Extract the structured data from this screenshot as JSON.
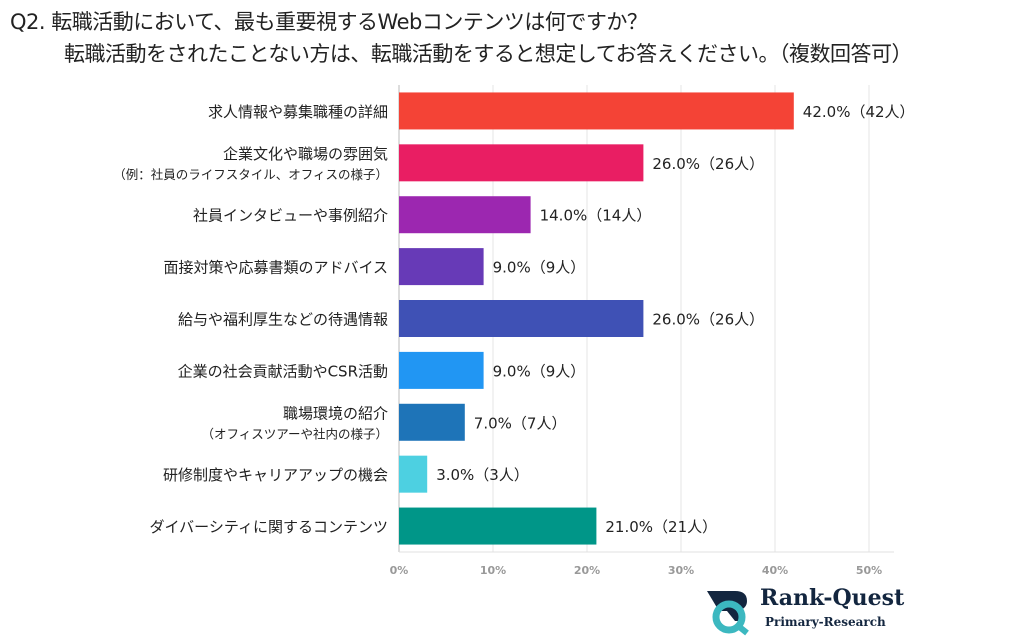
{
  "chart_data": {
    "type": "bar",
    "orientation": "horizontal",
    "title": "Q2. 転職活動において、最も重要視するWebコンテンツは何ですか？",
    "subtitle": "転職活動をされたことない方は、転職活動をすると想定してお答えください。（複数回答可）",
    "categories": [
      [
        "求人情報や募集職種の詳細"
      ],
      [
        "企業文化や職場の雰囲気",
        "（例：社員のライフスタイル、オフィスの様子）"
      ],
      [
        "社員インタビューや事例紹介"
      ],
      [
        "面接対策や応募書類のアドバイス"
      ],
      [
        "給与や福利厚生などの待遇情報"
      ],
      [
        "企業の社会貢献活動やCSR活動"
      ],
      [
        "職場環境の紹介",
        "（オフィスツアーや社内の様子）"
      ],
      [
        "研修制度やキャリアアップの機会"
      ],
      [
        "ダイバーシティに関するコンテンツ"
      ]
    ],
    "values": [
      42.0,
      26.0,
      14.0,
      9.0,
      26.0,
      9.0,
      7.0,
      3.0,
      21.0
    ],
    "counts": [
      42,
      26,
      14,
      9,
      26,
      9,
      7,
      3,
      21
    ],
    "data_labels": [
      "42.0%（42人）",
      "26.0%（26人）",
      "14.0%（14人）",
      "9.0%（9人）",
      "26.0%（26人）",
      "9.0%（9人）",
      "7.0%（7人）",
      "3.0%（3人）",
      "21.0%（21人）"
    ],
    "colors": [
      "#f44336",
      "#e91e63",
      "#9c27b0",
      "#673ab7",
      "#3f51b5",
      "#2196f3",
      "#1e74b8",
      "#4dd0e1",
      "#009688"
    ],
    "xlim": [
      0,
      50
    ],
    "xticks": [
      "0%",
      "10%",
      "20%",
      "30%",
      "40%",
      "50%"
    ],
    "grid": true
  },
  "logo": {
    "name": "Rank-Quest",
    "tagline": "Primary-Research"
  }
}
